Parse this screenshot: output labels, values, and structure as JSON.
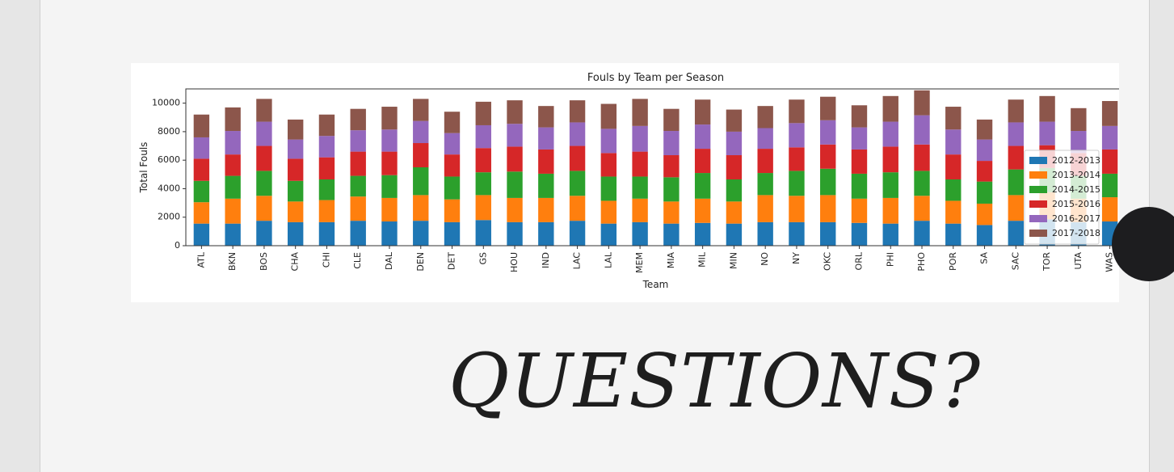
{
  "slide": {
    "heading": "QUESTIONS?"
  },
  "chart_data": {
    "type": "bar",
    "stacked": true,
    "title": "Fouls by Team per Season",
    "xlabel": "Team",
    "ylabel": "Total Fouls",
    "ylim": [
      0,
      11000
    ],
    "yticks": [
      0,
      2000,
      4000,
      6000,
      8000,
      10000
    ],
    "grid": false,
    "legend_position": "lower-right",
    "categories": [
      "ATL",
      "BKN",
      "BOS",
      "CHA",
      "CHI",
      "CLE",
      "DAL",
      "DEN",
      "DET",
      "GS",
      "HOU",
      "IND",
      "LAC",
      "LAL",
      "MEM",
      "MIA",
      "MIL",
      "MIN",
      "NO",
      "NY",
      "OKC",
      "ORL",
      "PHI",
      "PHO",
      "POR",
      "SA",
      "SAC",
      "TOR",
      "UTA",
      "WAS"
    ],
    "series": [
      {
        "name": "2012-2013",
        "color": "#1f77b4",
        "values": [
          1550,
          1550,
          1750,
          1650,
          1650,
          1750,
          1700,
          1750,
          1650,
          1800,
          1650,
          1650,
          1750,
          1550,
          1650,
          1550,
          1600,
          1550,
          1650,
          1650,
          1650,
          1600,
          1550,
          1750,
          1550,
          1450,
          1750,
          1850,
          1650,
          1700
        ]
      },
      {
        "name": "2013-2014",
        "color": "#ff7f0e",
        "values": [
          1500,
          1750,
          1750,
          1450,
          1550,
          1700,
          1650,
          1800,
          1600,
          1750,
          1700,
          1700,
          1750,
          1600,
          1650,
          1550,
          1700,
          1550,
          1900,
          1850,
          1900,
          1700,
          1800,
          1750,
          1600,
          1500,
          1800,
          1900,
          1650,
          1700
        ]
      },
      {
        "name": "2014-2015",
        "color": "#2ca02c",
        "values": [
          1500,
          1600,
          1750,
          1450,
          1450,
          1450,
          1600,
          1950,
          1600,
          1600,
          1850,
          1700,
          1750,
          1700,
          1550,
          1700,
          1800,
          1550,
          1550,
          1750,
          1850,
          1750,
          1800,
          1750,
          1500,
          1550,
          1800,
          1700,
          1600,
          1650
        ]
      },
      {
        "name": "2015-2016",
        "color": "#d62728",
        "values": [
          1550,
          1500,
          1750,
          1550,
          1550,
          1700,
          1650,
          1700,
          1550,
          1700,
          1750,
          1700,
          1750,
          1650,
          1750,
          1550,
          1700,
          1700,
          1700,
          1650,
          1700,
          1700,
          1800,
          1850,
          1750,
          1450,
          1650,
          1600,
          1600,
          1700
        ]
      },
      {
        "name": "2016-2017",
        "color": "#9467bd",
        "values": [
          1500,
          1650,
          1700,
          1350,
          1500,
          1500,
          1550,
          1550,
          1500,
          1600,
          1600,
          1550,
          1650,
          1700,
          1800,
          1700,
          1700,
          1650,
          1450,
          1700,
          1700,
          1550,
          1750,
          2050,
          1750,
          1500,
          1650,
          1650,
          1550,
          1650
        ]
      },
      {
        "name": "2017-2018",
        "color": "#8c564b",
        "values": [
          1600,
          1650,
          1600,
          1400,
          1500,
          1500,
          1600,
          1550,
          1500,
          1650,
          1650,
          1500,
          1550,
          1750,
          1900,
          1550,
          1750,
          1550,
          1550,
          1650,
          1650,
          1550,
          1800,
          1750,
          1600,
          1400,
          1600,
          1800,
          1600,
          1750
        ]
      }
    ]
  }
}
